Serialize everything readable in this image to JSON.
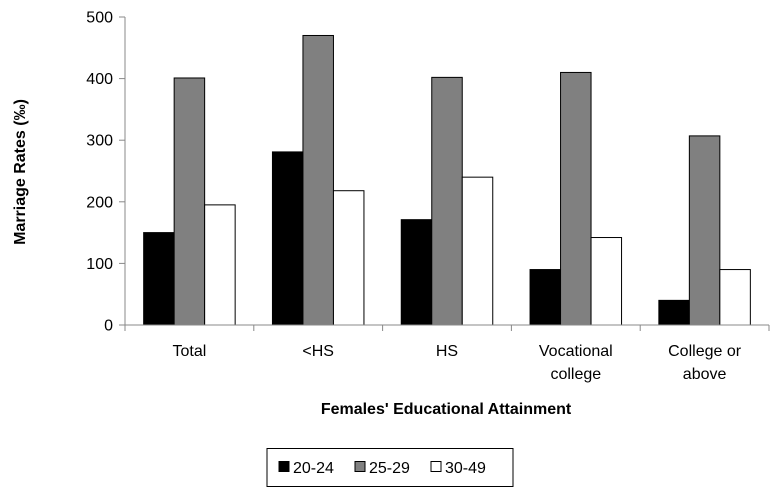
{
  "chart_data": {
    "type": "bar",
    "title": "",
    "xlabel": "Females' Educational Attainment",
    "ylabel": "Marriage Rates (‰)",
    "ylim": [
      0,
      500
    ],
    "yticks": [
      0,
      100,
      200,
      300,
      400,
      500
    ],
    "categories": [
      [
        "Total"
      ],
      [
        "<HS"
      ],
      [
        "HS"
      ],
      [
        "Vocational",
        "college"
      ],
      [
        "College or",
        "above"
      ]
    ],
    "series": [
      {
        "name": "20-24",
        "color": "#000000",
        "values": [
          150,
          281,
          171,
          90,
          40
        ]
      },
      {
        "name": "25-29",
        "color": "#808080",
        "values": [
          401,
          470,
          402,
          410,
          307
        ]
      },
      {
        "name": "30-49",
        "color": "#ffffff",
        "values": [
          195,
          218,
          240,
          142,
          90
        ]
      }
    ],
    "grid": false,
    "legend_position": "bottom"
  }
}
